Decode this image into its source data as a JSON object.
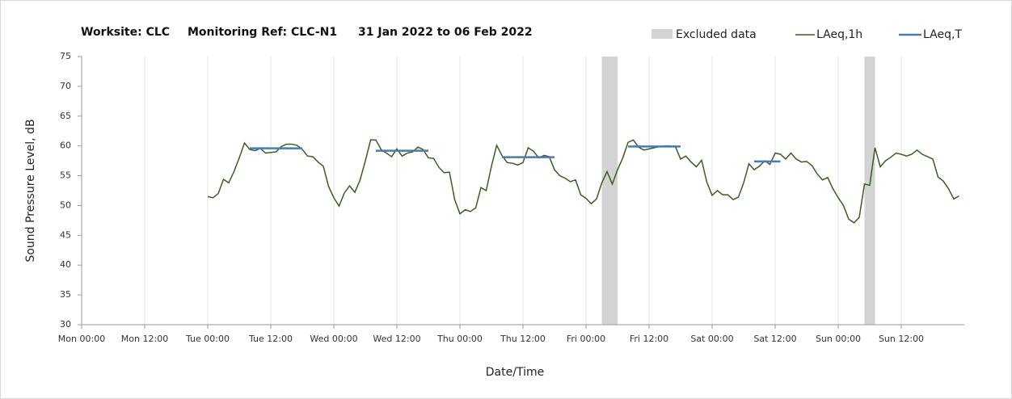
{
  "chart_data": {
    "type": "line",
    "title_parts": [
      "Worksite: CLC",
      "Monitoring Ref: CLC-N1",
      "31 Jan 2022 to 06 Feb 2022"
    ],
    "y_label": "Sound Pressure Level, dB",
    "x_label": "Date/Time",
    "xlim": [
      0,
      168
    ],
    "xticks": [
      {
        "value": 0,
        "label": "Mon 00:00"
      },
      {
        "value": 12,
        "label": "Mon 12:00"
      },
      {
        "value": 24,
        "label": "Tue 00:00"
      },
      {
        "value": 36,
        "label": "Tue 12:00"
      },
      {
        "value": 48,
        "label": "Wed 00:00"
      },
      {
        "value": 60,
        "label": "Wed 12:00"
      },
      {
        "value": 72,
        "label": "Thu 00:00"
      },
      {
        "value": 84,
        "label": "Thu 12:00"
      },
      {
        "value": 96,
        "label": "Fri 00:00"
      },
      {
        "value": 108,
        "label": "Fri 12:00"
      },
      {
        "value": 120,
        "label": "Sat 00:00"
      },
      {
        "value": 132,
        "label": "Sat 12:00"
      },
      {
        "value": 144,
        "label": "Sun 00:00"
      },
      {
        "value": 156,
        "label": "Sun 12:00"
      }
    ],
    "ylim": [
      30,
      75
    ],
    "yticks": [
      30,
      35,
      40,
      45,
      50,
      55,
      60,
      65,
      70,
      75
    ],
    "grid": true,
    "legend": "top-right",
    "bands": {
      "name": "Excluded data",
      "color": "#d3d3d3",
      "x_start": [
        99,
        149
      ],
      "x_end": [
        102,
        151
      ]
    },
    "series": [
      {
        "name": "LAeq,1h",
        "color": "#3a5e1f",
        "x": [
          24,
          25,
          26,
          27,
          28,
          29,
          30,
          31,
          32,
          33,
          34,
          35,
          36,
          37,
          38,
          39,
          40,
          41,
          42,
          43,
          44,
          45,
          46,
          47,
          48,
          49,
          50,
          51,
          52,
          53,
          54,
          55,
          56,
          57,
          58,
          59,
          60,
          61,
          62,
          63,
          64,
          65,
          66,
          67,
          68,
          69,
          70,
          71,
          72,
          73,
          74,
          75,
          76,
          77,
          78,
          79,
          80,
          81,
          82,
          83,
          84,
          85,
          86,
          87,
          88,
          89,
          90,
          91,
          92,
          93,
          94,
          95,
          96,
          97,
          98,
          99,
          100,
          101,
          102,
          103,
          104,
          105,
          106,
          107,
          108,
          109,
          110,
          111,
          112,
          113,
          114,
          115,
          116,
          117,
          118,
          119,
          120,
          121,
          122,
          123,
          124,
          125,
          126,
          127,
          128,
          129,
          130,
          131,
          132,
          133,
          134,
          135,
          136,
          137,
          138,
          139,
          140,
          141,
          142,
          143,
          144,
          145,
          146,
          147,
          148,
          149,
          150,
          151,
          152,
          153,
          154,
          155,
          156,
          157,
          158,
          159,
          160,
          161,
          162,
          163,
          164,
          165,
          166,
          167
        ],
        "values": [
          51.5,
          51.3,
          52,
          54.4,
          53.8,
          55.7,
          58,
          60.5,
          59.4,
          59.2,
          59.6,
          58.8,
          58.9,
          59,
          59.9,
          60.3,
          60.3,
          60.1,
          59.4,
          58.3,
          58.2,
          57.3,
          56.6,
          53.2,
          51.3,
          49.9,
          52.1,
          53.3,
          52.2,
          54.3,
          57.5,
          61,
          61,
          59.4,
          58.8,
          58.2,
          59.5,
          58.3,
          58.8,
          59,
          59.8,
          59.4,
          58,
          57.9,
          56.4,
          55.5,
          55.6,
          51,
          48.6,
          49.3,
          49,
          49.6,
          53,
          52.5,
          56.6,
          60.1,
          58.4,
          57.2,
          57.1,
          56.8,
          57.2,
          59.7,
          59.1,
          58,
          58.4,
          58.2,
          56,
          55,
          54.6,
          54,
          54.3,
          51.8,
          51.2,
          50.3,
          51.1,
          53.8,
          55.7,
          53.6,
          56,
          58,
          60.6,
          61,
          59.8,
          59.3,
          59.5,
          59.7,
          59.9,
          60,
          60,
          59.9,
          57.8,
          58.3,
          57.3,
          56.5,
          57.6,
          53.9,
          51.7,
          52.5,
          51.8,
          51.8,
          51,
          51.4,
          53.8,
          57,
          56,
          56.6,
          57.5,
          56.9,
          58.8,
          58.6,
          57.8,
          58.8,
          57.8,
          57.3,
          57.4,
          56.7,
          55.3,
          54.3,
          54.7,
          52.8,
          51.3,
          50,
          47.7,
          47.1,
          48,
          53.6,
          53.4,
          59.7,
          56.5,
          57.5,
          58.1,
          58.8,
          58.6,
          58.3,
          58.6,
          59.3,
          58.6,
          58.2,
          57.8,
          54.8,
          54.1,
          52.8,
          51.1,
          51.6
        ]
      },
      {
        "name": "LAeq,T",
        "color": "#4a7ab5",
        "x_start": [
          32,
          56,
          80,
          104,
          128
        ],
        "x_end": [
          42,
          66,
          90,
          114,
          133
        ],
        "values": [
          59.6,
          59.2,
          58.1,
          59.9,
          57.4
        ]
      }
    ]
  }
}
